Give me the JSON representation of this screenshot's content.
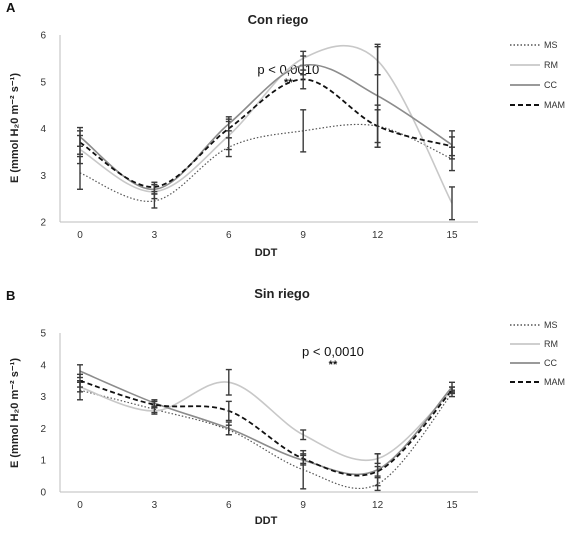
{
  "chart_data": [
    {
      "type": "line",
      "panel_label": "A",
      "title": "Con riego",
      "xlabel": "DDT",
      "ylabel": "E (mmol H₂0 m⁻² s⁻¹)",
      "x": [
        0,
        3,
        6,
        9,
        12,
        15
      ],
      "xtick_labels": [
        "0",
        "3",
        "6",
        "9",
        "12",
        "15"
      ],
      "ylim": [
        2,
        6
      ],
      "ytick_labels": [
        "2",
        "3",
        "4",
        "5",
        "6"
      ],
      "grid": false,
      "legend_position": "right",
      "annotation": {
        "text": "p < 0,0010",
        "stars": "**",
        "x": 8.4
      },
      "series": [
        {
          "name": "MS",
          "style": "dotted",
          "color": "#555555",
          "values": [
            3.05,
            2.45,
            3.6,
            3.95,
            4.05,
            3.35
          ],
          "errors": [
            0.35,
            0.15,
            0.2,
            0.45,
            0.45,
            0.25
          ]
        },
        {
          "name": "RM",
          "style": "solid",
          "color": "#c8c8c8",
          "values": [
            3.55,
            2.65,
            3.85,
            5.5,
            5.45,
            2.4
          ],
          "errors": [
            0.3,
            0.15,
            0.3,
            0.15,
            0.3,
            0.35
          ]
        },
        {
          "name": "CC",
          "style": "solid",
          "color": "#8c8c8c",
          "values": [
            3.82,
            2.7,
            4.1,
            5.35,
            4.7,
            3.65
          ],
          "errors": [
            0.2,
            0.1,
            0.15,
            0.2,
            1.1,
            0.3
          ]
        },
        {
          "name": "MAM",
          "style": "dashed",
          "color": "#111111",
          "values": [
            3.7,
            2.75,
            4.0,
            5.05,
            4.05,
            3.62
          ],
          "errors": [
            0.25,
            0.1,
            0.2,
            0.2,
            0.35,
            0.2
          ]
        }
      ]
    },
    {
      "type": "line",
      "panel_label": "B",
      "title": "Sin riego",
      "xlabel": "DDT",
      "ylabel": "E (mmol H₂0 m⁻² s⁻¹)",
      "x": [
        0,
        3,
        6,
        9,
        12,
        15
      ],
      "xtick_labels": [
        "0",
        "3",
        "6",
        "9",
        "12",
        "15"
      ],
      "ylim": [
        0,
        5
      ],
      "ytick_labels": [
        "0",
        "1",
        "2",
        "3",
        "4",
        "5"
      ],
      "grid": false,
      "legend_position": "right",
      "annotation": {
        "text": "p < 0,0010",
        "stars": "**",
        "x": 10.2
      },
      "series": [
        {
          "name": "MS",
          "style": "dotted",
          "color": "#555555",
          "values": [
            3.2,
            2.6,
            1.95,
            0.7,
            0.25,
            3.1
          ],
          "errors": [
            0.3,
            0.1,
            0.15,
            0.6,
            0.2,
            0.1
          ]
        },
        {
          "name": "RM",
          "style": "solid",
          "color": "#c8c8c8",
          "values": [
            3.3,
            2.55,
            3.45,
            1.8,
            1.05,
            3.2
          ],
          "errors": [
            0.15,
            0.1,
            0.4,
            0.15,
            0.15,
            0.1
          ]
        },
        {
          "name": "CC",
          "style": "solid",
          "color": "#8c8c8c",
          "values": [
            3.8,
            2.8,
            2.0,
            1.0,
            0.7,
            3.3
          ],
          "errors": [
            0.2,
            0.1,
            0.2,
            0.15,
            0.5,
            0.15
          ]
        },
        {
          "name": "MAM",
          "style": "dashed",
          "color": "#111111",
          "values": [
            3.5,
            2.75,
            2.55,
            1.05,
            0.65,
            3.2
          ],
          "errors": [
            0.2,
            0.1,
            0.3,
            0.15,
            0.15,
            0.1
          ]
        }
      ]
    }
  ]
}
